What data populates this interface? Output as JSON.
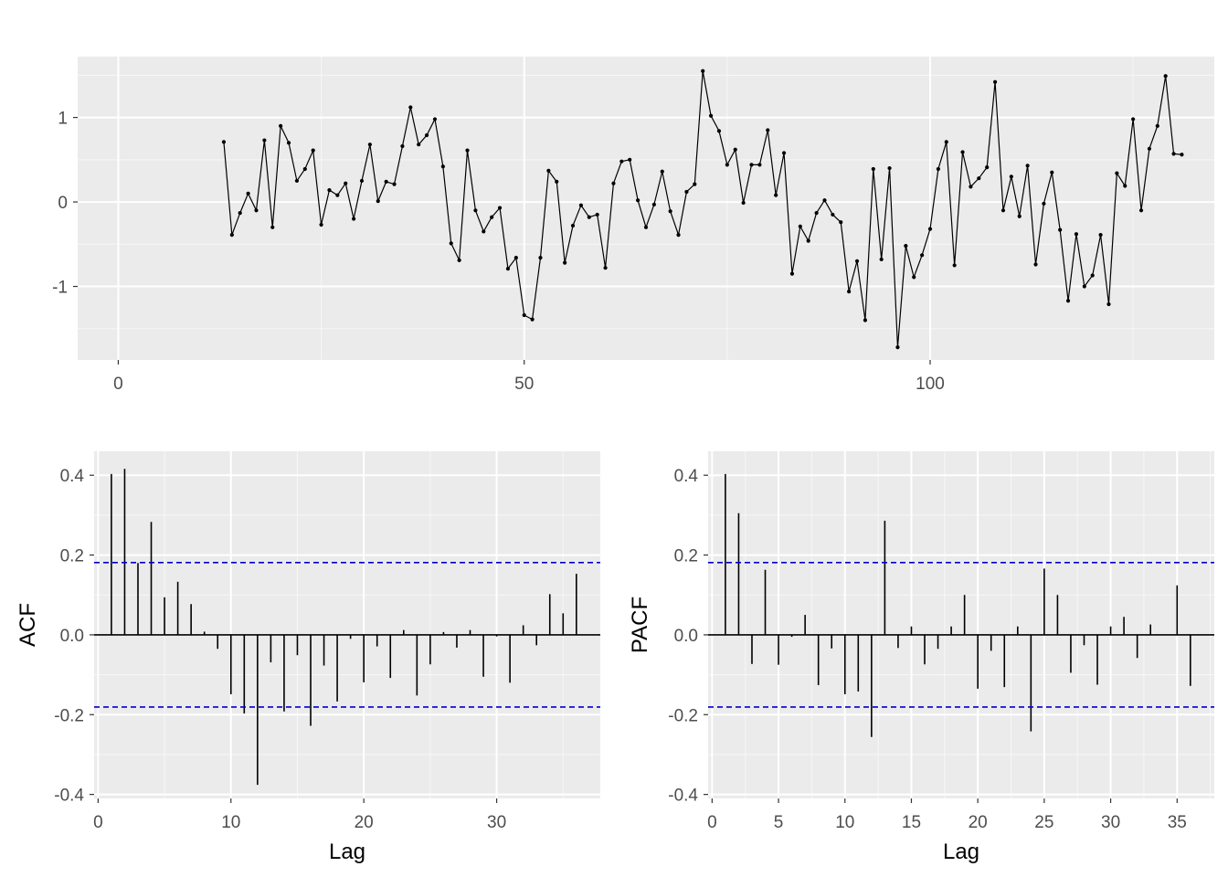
{
  "chart_data": [
    {
      "type": "line",
      "title": "",
      "xlabel": "",
      "ylabel": "",
      "xlim": [
        -5,
        135
      ],
      "ylim": [
        -1.87,
        1.72
      ],
      "x_ticks": [
        0,
        50,
        100
      ],
      "x_tick_labels": [
        "0",
        "50",
        "100"
      ],
      "y_ticks": [
        -1,
        0,
        1
      ],
      "y_tick_labels": [
        "-1",
        "0",
        "1"
      ],
      "grid": true,
      "line_color": "#000000",
      "panel_color": "#ebebeb",
      "x_start": 13,
      "y": [
        0.71,
        -0.39,
        -0.13,
        0.1,
        -0.1,
        0.73,
        -0.3,
        0.9,
        0.7,
        0.25,
        0.39,
        0.61,
        -0.27,
        0.14,
        0.08,
        0.22,
        -0.2,
        0.25,
        0.68,
        0.01,
        0.24,
        0.21,
        0.66,
        1.12,
        0.68,
        0.79,
        0.98,
        0.42,
        -0.49,
        -0.69,
        0.61,
        -0.1,
        -0.35,
        -0.18,
        -0.07,
        -0.79,
        -0.66,
        -1.34,
        -1.39,
        -0.66,
        0.37,
        0.24,
        -0.72,
        -0.28,
        -0.04,
        -0.18,
        -0.15,
        -0.78,
        0.22,
        0.48,
        0.5,
        0.02,
        -0.3,
        -0.03,
        0.36,
        -0.11,
        -0.39,
        0.12,
        0.21,
        1.55,
        1.02,
        0.84,
        0.44,
        0.62,
        -0.01,
        0.44,
        0.44,
        0.85,
        0.08,
        0.58,
        -0.85,
        -0.29,
        -0.46,
        -0.13,
        0.02,
        -0.15,
        -0.24,
        -1.06,
        -0.7,
        -1.4,
        0.39,
        -0.68,
        0.4,
        -1.72,
        -0.52,
        -0.89,
        -0.63,
        -0.32,
        0.39,
        0.71,
        -0.75,
        0.59,
        0.18,
        0.28,
        0.41,
        1.42,
        -0.1,
        0.3,
        -0.17,
        0.43,
        -0.74,
        -0.02,
        0.35,
        -0.33,
        -1.17,
        -0.38,
        -1.0,
        -0.87,
        -0.39,
        -1.21,
        0.34,
        0.19,
        0.98,
        -0.1,
        0.63,
        0.9,
        1.49,
        0.57,
        0.56
      ]
    },
    {
      "type": "bar",
      "title": "",
      "xlabel": "Lag",
      "ylabel": "ACF",
      "xlim": [
        -0.3,
        37.8
      ],
      "ylim": [
        -0.41,
        0.46
      ],
      "x_ticks": [
        0,
        10,
        20,
        30
      ],
      "x_tick_labels": [
        "0",
        "10",
        "20",
        "30"
      ],
      "y_ticks": [
        -0.4,
        -0.2,
        0.0,
        0.2,
        0.4
      ],
      "y_tick_labels": [
        "-0.4",
        "-0.2",
        "0.0",
        "0.2",
        "0.4"
      ],
      "grid": true,
      "confidence_bound": 0.181,
      "confidence_color": "#0000cc",
      "lags": [
        1,
        2,
        3,
        4,
        5,
        6,
        7,
        8,
        9,
        10,
        11,
        12,
        13,
        14,
        15,
        16,
        17,
        18,
        19,
        20,
        21,
        22,
        23,
        24,
        25,
        26,
        27,
        28,
        29,
        30,
        31,
        32,
        33,
        34,
        35,
        36
      ],
      "values": [
        0.403,
        0.416,
        0.18,
        0.283,
        0.094,
        0.133,
        0.077,
        0.008,
        -0.035,
        -0.149,
        -0.197,
        -0.376,
        -0.069,
        -0.192,
        -0.051,
        -0.228,
        -0.077,
        -0.167,
        -0.01,
        -0.119,
        -0.029,
        -0.108,
        0.012,
        -0.152,
        -0.074,
        0.007,
        -0.032,
        0.012,
        -0.105,
        -0.004,
        -0.12,
        0.024,
        -0.026,
        0.102,
        0.054,
        0.153
      ]
    },
    {
      "type": "bar",
      "title": "",
      "xlabel": "Lag",
      "ylabel": "PACF",
      "xlim": [
        -0.3,
        37.8
      ],
      "ylim": [
        -0.41,
        0.46
      ],
      "x_ticks": [
        0,
        5,
        10,
        15,
        20,
        25,
        30,
        35
      ],
      "x_tick_labels": [
        "0",
        "5",
        "10",
        "15",
        "20",
        "25",
        "30",
        "35"
      ],
      "y_ticks": [
        -0.4,
        -0.2,
        0.0,
        0.2,
        0.4
      ],
      "y_tick_labels": [
        "-0.4",
        "-0.2",
        "0.0",
        "0.2",
        "0.4"
      ],
      "grid": true,
      "confidence_bound": 0.181,
      "confidence_color": "#0000cc",
      "lags": [
        1,
        2,
        3,
        4,
        5,
        6,
        7,
        8,
        9,
        10,
        11,
        12,
        13,
        14,
        15,
        16,
        17,
        18,
        19,
        20,
        21,
        22,
        23,
        24,
        25,
        26,
        27,
        28,
        29,
        30,
        31,
        32,
        33,
        34,
        35,
        36
      ],
      "values": [
        0.403,
        0.305,
        -0.073,
        0.163,
        -0.075,
        -0.005,
        0.05,
        -0.126,
        -0.034,
        -0.149,
        -0.142,
        -0.256,
        0.286,
        -0.033,
        0.021,
        -0.074,
        -0.035,
        0.021,
        0.1,
        -0.135,
        -0.04,
        -0.131,
        0.021,
        -0.242,
        0.166,
        0.1,
        -0.095,
        -0.026,
        -0.125,
        0.021,
        0.045,
        -0.058,
        0.026,
        0.0,
        0.124,
        -0.128
      ]
    }
  ]
}
